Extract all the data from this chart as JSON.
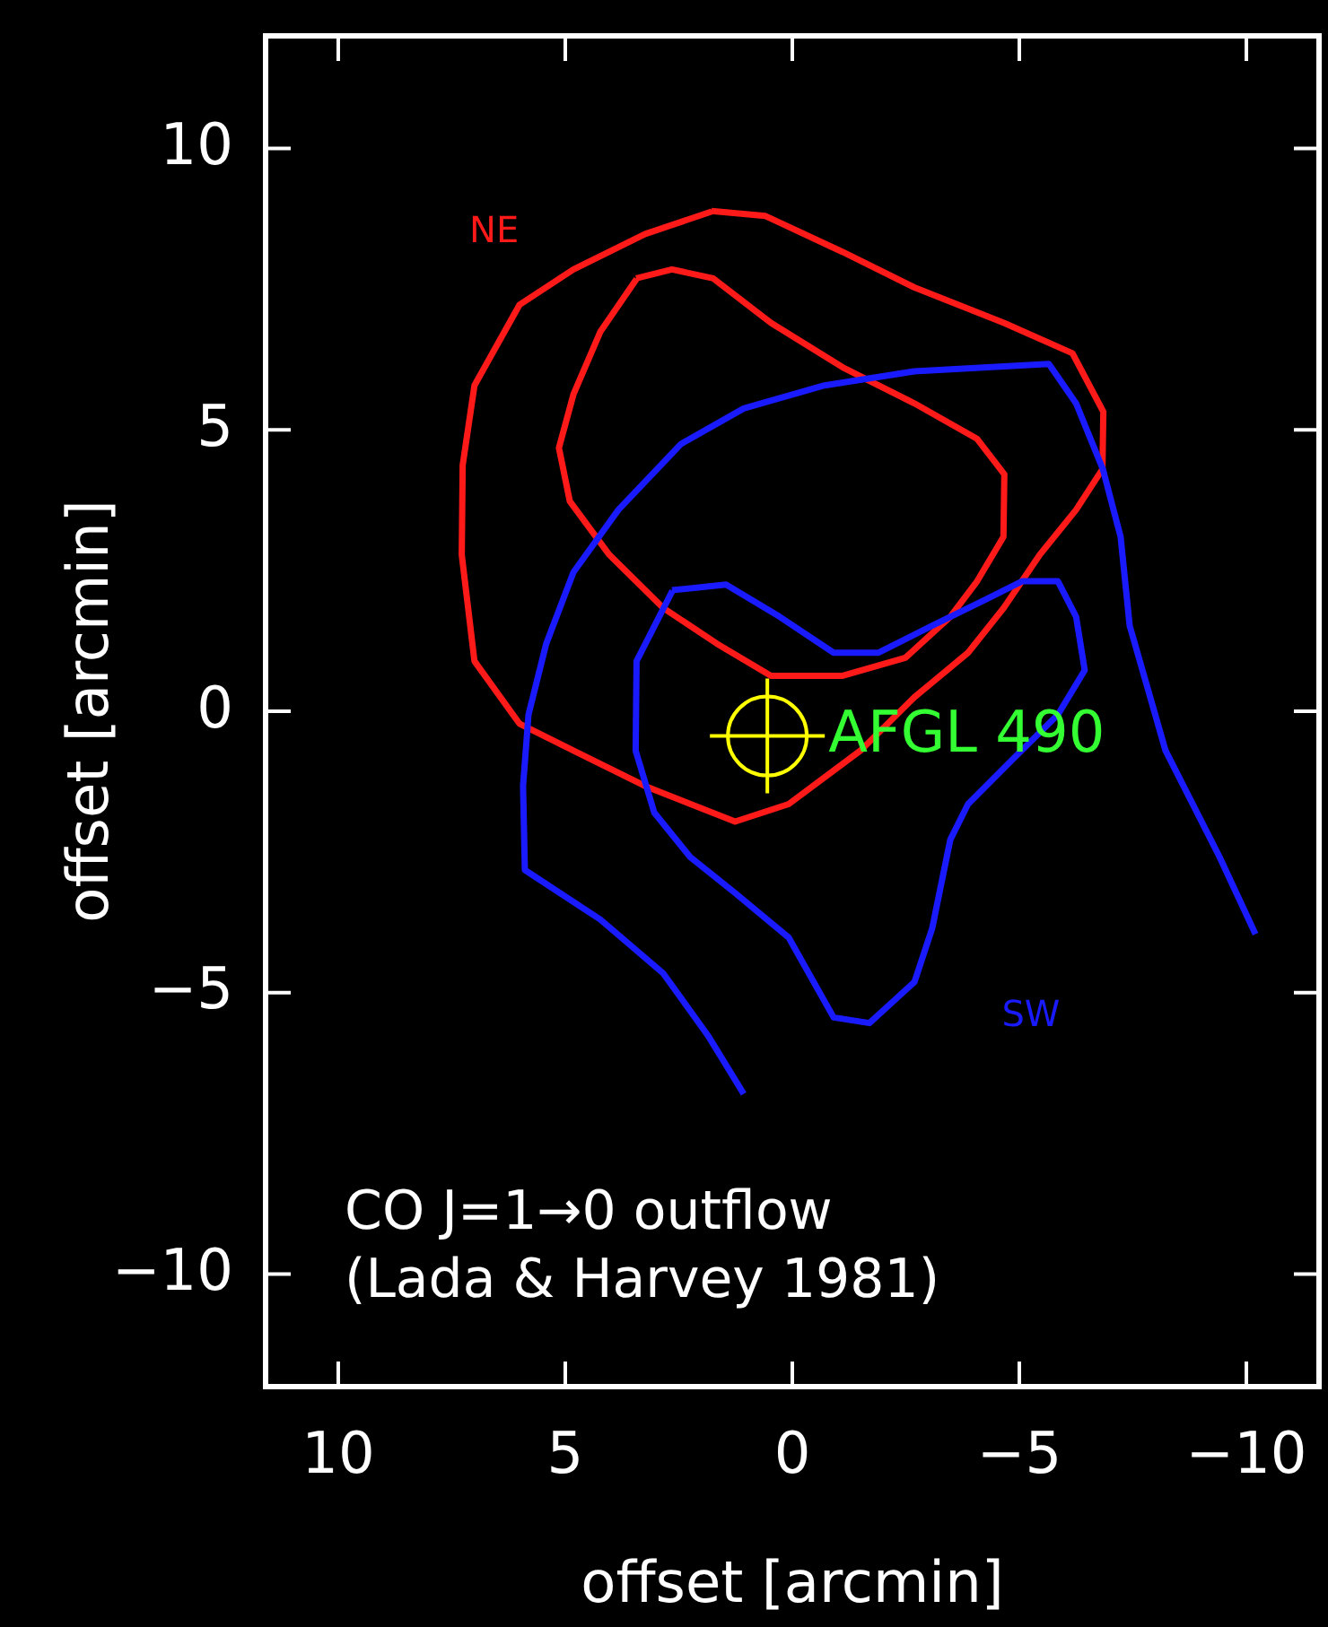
{
  "chart_data": {
    "type": "line",
    "xlabel": "offset [arcmin]",
    "ylabel": "offset [arcmin]",
    "xlim": [
      11.6,
      -11.6
    ],
    "ylim": [
      -12,
      12
    ],
    "xticks": [
      10,
      5,
      0,
      -5,
      -10
    ],
    "yticks": [
      -10,
      -5,
      0,
      5,
      10
    ],
    "grid": false,
    "line_style": "solid",
    "series": [
      {
        "name": "NE",
        "color": "#ff1a1a",
        "x": [
          1.78,
          0.59,
          -1.11,
          -2.69,
          -4.66,
          -6.17,
          -6.85,
          -6.83,
          -6.25,
          -5.45,
          -4.66,
          -3.87,
          -2.69,
          -1.5,
          0.08,
          1.26,
          3.24,
          4.82,
          6.01,
          7.0,
          7.28,
          7.26,
          7.0,
          6.01,
          4.82,
          3.24,
          1.77
        ],
        "values": [
          8.89,
          8.8,
          8.16,
          7.53,
          6.9,
          6.36,
          5.32,
          4.3,
          3.58,
          2.78,
          1.84,
          1.04,
          0.25,
          -0.7,
          -1.65,
          -1.96,
          -1.33,
          -0.7,
          -0.22,
          0.89,
          2.78,
          4.37,
          5.79,
          7.22,
          7.85,
          8.48,
          8.88
        ]
      },
      {
        "color": "#ff1a1a",
        "x": [
          3.44,
          2.65,
          1.74,
          0.47,
          -1.11,
          -2.69,
          -4.07,
          -4.67,
          -4.65,
          -4.07,
          -3.48,
          -2.49,
          -1.11,
          0.47,
          1.66,
          2.85,
          4.03,
          4.9,
          5.14,
          4.82,
          4.23,
          3.43
        ],
        "values": [
          7.69,
          7.85,
          7.69,
          6.9,
          6.11,
          5.47,
          4.84,
          4.21,
          3.1,
          2.31,
          1.68,
          0.95,
          0.63,
          0.63,
          1.2,
          1.84,
          2.78,
          3.73,
          4.68,
          5.63,
          6.74,
          7.68
        ]
      },
      {
        "color": "#1a1aff",
        "x": [
          1.07,
          1.86,
          2.85,
          4.23,
          5.89,
          5.93,
          5.81,
          5.42,
          4.82,
          3.83,
          2.45,
          1.07,
          -0.71,
          -2.69,
          -5.65,
          -6.25,
          -6.84,
          -7.23,
          -7.43,
          -8.22,
          -9.41,
          -10.2
        ],
        "values": [
          -6.8,
          -5.76,
          -4.65,
          -3.7,
          -2.82,
          -1.33,
          -0.06,
          1.2,
          2.47,
          3.58,
          4.75,
          5.38,
          5.79,
          6.04,
          6.17,
          5.47,
          4.3,
          3.1,
          1.52,
          -0.7,
          -2.59,
          -3.96
        ]
      },
      {
        "name": "SW",
        "color": "#1a1aff",
        "x": [
          2.65,
          1.46,
          0.28,
          -0.91,
          -1.9,
          -3.08,
          -4.27,
          -5.06,
          -5.85,
          -6.25,
          -6.44,
          -5.85,
          -4.86,
          -3.87,
          -3.48,
          -3.08,
          -2.69,
          -1.7,
          -0.91,
          0.08,
          1.26,
          2.25,
          3.04,
          3.45,
          3.43,
          2.64
        ],
        "values": [
          2.15,
          2.25,
          1.68,
          1.04,
          1.04,
          1.52,
          1.99,
          2.31,
          2.31,
          1.68,
          0.73,
          -0.06,
          -0.85,
          -1.65,
          -2.28,
          -3.86,
          -4.81,
          -5.54,
          -5.44,
          -4.02,
          -3.23,
          -2.59,
          -1.8,
          -0.7,
          0.89,
          2.14
        ]
      },
      {
        "type": "scatter",
        "marker": "circle",
        "color": "#ffff00",
        "x": [
          0.55
        ],
        "values": [
          -0.44
        ]
      }
    ],
    "annotations": [
      {
        "text": "AFGL 490",
        "x": 0.55,
        "y": -0.44
      },
      "CO J=1→0 outflow",
      "(Lada & Harvey 1981)"
    ]
  }
}
